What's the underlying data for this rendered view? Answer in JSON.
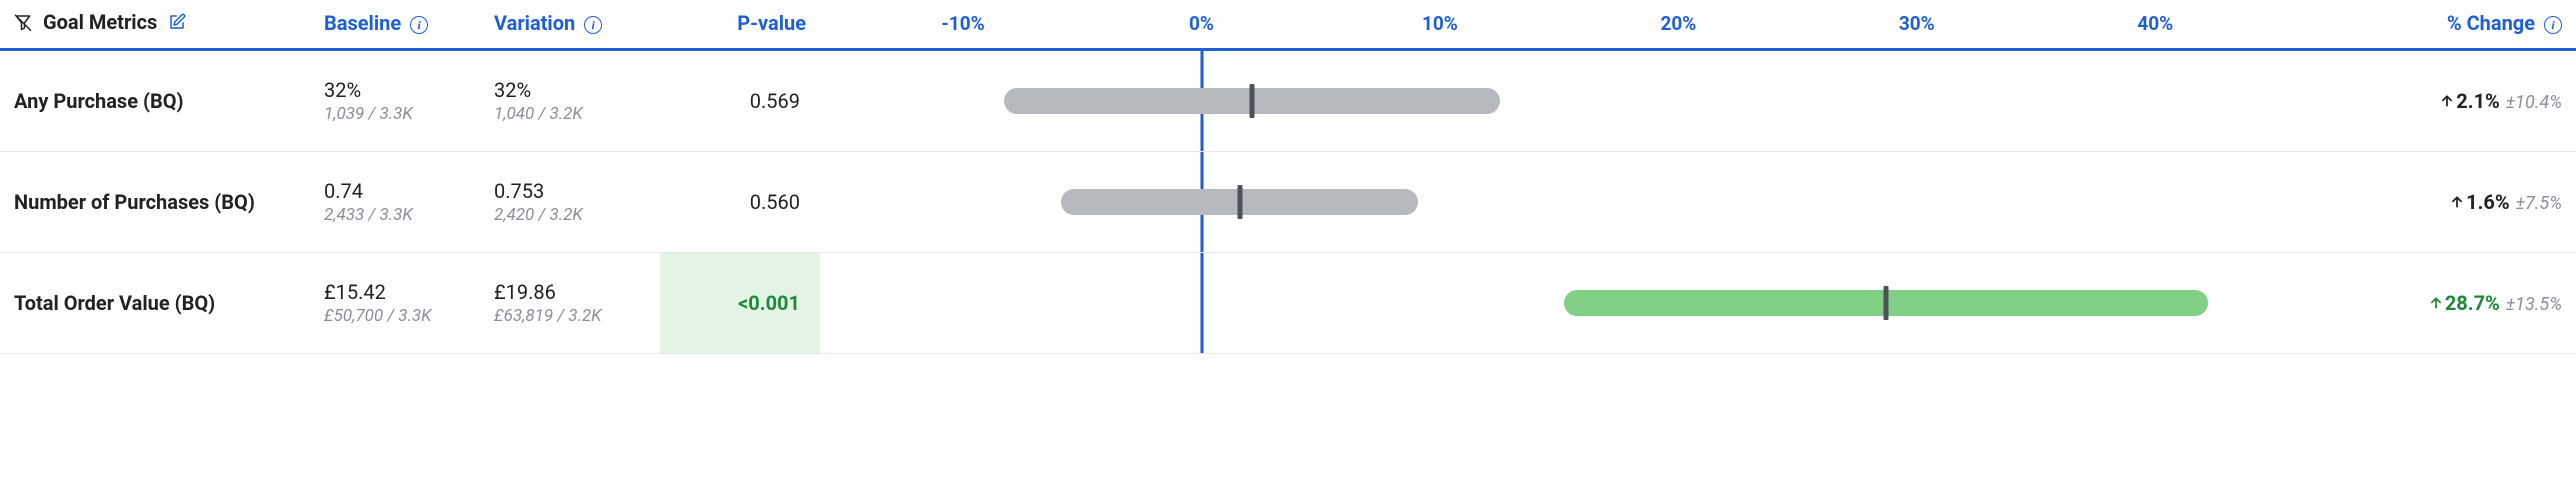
{
  "colors": {
    "primary": "#1f5fd6",
    "text": "#222222",
    "subtext": "#8a8f98",
    "border": "#e3e6ea",
    "ci_gray": "#b6b9be",
    "ci_green": "#80cf84",
    "ci_marker": "#4e5258",
    "sig_bg": "#e3f4e4",
    "sig_text": "#1c8a3a"
  },
  "header": {
    "metric_label": "Goal Metrics",
    "baseline_label": "Baseline",
    "variation_label": "Variation",
    "pvalue_label": "P-value",
    "change_label": "% Change"
  },
  "chart": {
    "axis_min": -16,
    "axis_max": 48,
    "ticks": [
      {
        "v": -10,
        "label": "-10%"
      },
      {
        "v": 0,
        "label": "0%"
      },
      {
        "v": 10,
        "label": "10%"
      },
      {
        "v": 20,
        "label": "20%"
      },
      {
        "v": 30,
        "label": "30%"
      },
      {
        "v": 40,
        "label": "40%"
      }
    ]
  },
  "rows": [
    {
      "name": "Any Purchase (BQ)",
      "baseline_main": "32%",
      "baseline_sub": "1,039 / 3.3K",
      "variation_main": "32%",
      "variation_sub": "1,040 / 3.2K",
      "pvalue": "0.569",
      "significant": false,
      "ci_lo": -8.3,
      "ci_hi": 12.5,
      "point": 2.1,
      "ci_color": "gray",
      "change": "2.1%",
      "change_err": "±10.4%",
      "change_green": false
    },
    {
      "name": "Number of Purchases (BQ)",
      "baseline_main": "0.74",
      "baseline_sub": "2,433 / 3.3K",
      "variation_main": "0.753",
      "variation_sub": "2,420 / 3.2K",
      "pvalue": "0.560",
      "significant": false,
      "ci_lo": -5.9,
      "ci_hi": 9.1,
      "point": 1.6,
      "ci_color": "gray",
      "change": "1.6%",
      "change_err": "±7.5%",
      "change_green": false
    },
    {
      "name": "Total Order Value (BQ)",
      "baseline_main": "£15.42",
      "baseline_sub": "£50,700 / 3.3K",
      "variation_main": "£19.86",
      "variation_sub": "£63,819 / 3.2K",
      "pvalue": "<0.001",
      "significant": true,
      "ci_lo": 15.2,
      "ci_hi": 42.2,
      "point": 28.7,
      "ci_color": "green",
      "change": "28.7%",
      "change_err": "±13.5%",
      "change_green": true
    }
  ]
}
